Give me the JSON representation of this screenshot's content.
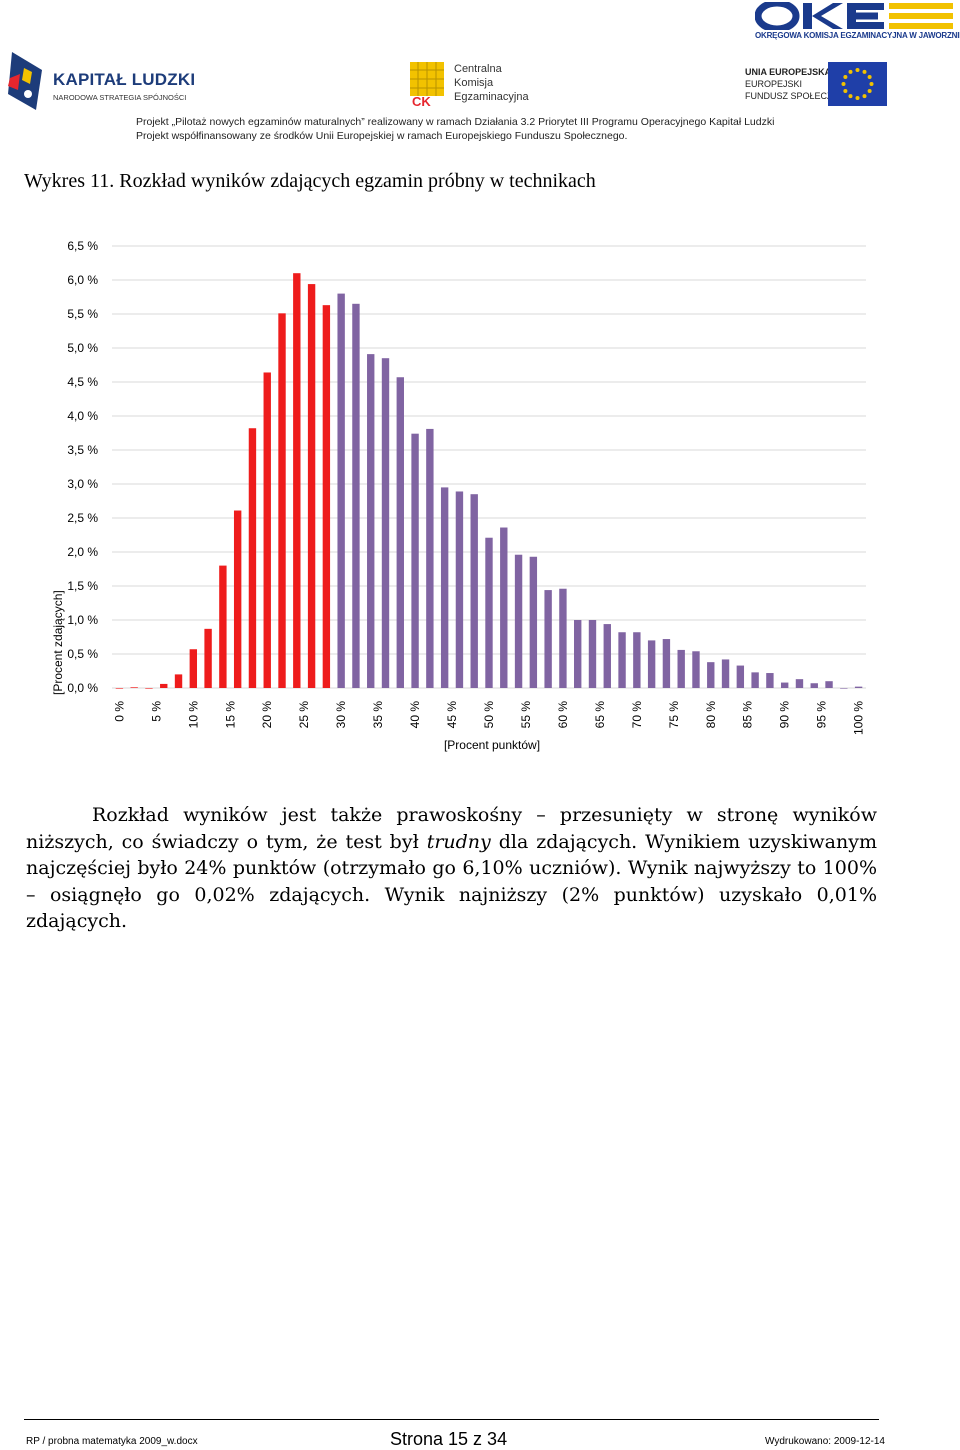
{
  "header": {
    "oke_caption": "OKRĘGOWA KOMISJA EGZAMINACYJNA W JAWORZNIE",
    "kl_title": "KAPITAŁ LUDZKI",
    "kl_subtitle": "NARODOWA STRATEGIA SPÓJNOŚCI",
    "cke_lines": [
      "Centralna",
      "Komisja",
      "Egzaminacyjna"
    ],
    "ue_lines": [
      "UNIA EUROPEJSKA",
      "EUROPEJSKI",
      "FUNDUSZ SPOŁECZNY"
    ],
    "project_line_1": "Projekt „Pilotaż nowych egzaminów maturalnych” realizowany w ramach Działania 3.2 Priorytet III Programu Operacyjnego Kapitał Ludzki",
    "project_line_2": "Projekt współfinansowany ze środków Unii Europejskiej w ramach Europejskiego Funduszu Społecznego."
  },
  "figure": {
    "caption": "Wykres 11. Rozkład wyników zdających egzamin próbny w technikach"
  },
  "colors": {
    "red_bars": "#ee1c1c",
    "purple_bars": "#8064a2",
    "grid": "#d9d9d9"
  },
  "chart_data": {
    "type": "bar",
    "xlabel": "[Procent punktów]",
    "ylabel": "[Procent zdających]",
    "ylim": [
      0,
      6.5
    ],
    "y_ticks": [
      "0,0 %",
      "0,5 %",
      "1,0 %",
      "1,5 %",
      "2,0 %",
      "2,5 %",
      "3,0 %",
      "3,5 %",
      "4,0 %",
      "4,5 %",
      "5,0 %",
      "5,5 %",
      "6,0 %",
      "6,5 %"
    ],
    "x_ticks": [
      "0 %",
      "5 %",
      "10 %",
      "15 %",
      "20 %",
      "25 %",
      "30 %",
      "35 %",
      "40 %",
      "45 %",
      "50 %",
      "55 %",
      "60 %",
      "65 %",
      "70 %",
      "75 %",
      "80 %",
      "85 %",
      "90 %",
      "95 %",
      "100 %"
    ],
    "grid": "horizontal",
    "x": [
      0,
      2,
      4,
      6,
      8,
      10,
      12,
      14,
      16,
      18,
      20,
      22,
      24,
      26,
      28,
      30,
      32,
      34,
      36,
      38,
      40,
      42,
      44,
      46,
      48,
      50,
      52,
      54,
      56,
      58,
      60,
      62,
      64,
      66,
      68,
      70,
      72,
      74,
      76,
      78,
      80,
      82,
      84,
      86,
      88,
      90,
      92,
      94,
      96,
      98,
      100
    ],
    "values": [
      0.0,
      0.01,
      0.0,
      0.06,
      0.2,
      0.57,
      0.87,
      1.8,
      2.61,
      3.82,
      4.64,
      5.51,
      6.1,
      5.94,
      5.63,
      5.8,
      5.65,
      4.91,
      4.85,
      4.57,
      3.74,
      3.81,
      2.95,
      2.89,
      2.85,
      2.21,
      2.36,
      1.96,
      1.93,
      1.44,
      1.46,
      1.0,
      1.0,
      0.94,
      0.82,
      0.82,
      0.7,
      0.72,
      0.56,
      0.54,
      0.38,
      0.42,
      0.33,
      0.23,
      0.22,
      0.08,
      0.13,
      0.07,
      0.1,
      0.0,
      0.02
    ],
    "red_until_x": 28
  },
  "paragraph": {
    "p1": "Rozkład wyników jest także prawoskośny – przesunięty w stronę wyników niższych, co świadczy o tym, że test był ",
    "p1_em": "trudny",
    "p2": " dla zdających. Wynikiem uzyskiwanym najczęściej było 24% punktów (otrzymało go 6,10% uczniów). Wynik najwyższy to 100% – osiągnęło go 0,02% zdających. Wynik najniższy (2% punktów) uzyskało 0,01% zdających."
  },
  "footer": {
    "file": "RP / probna matematyka 2009_w.docx",
    "page": "Strona 15 z 34",
    "printed": "Wydrukowano: 2009-12-14"
  }
}
